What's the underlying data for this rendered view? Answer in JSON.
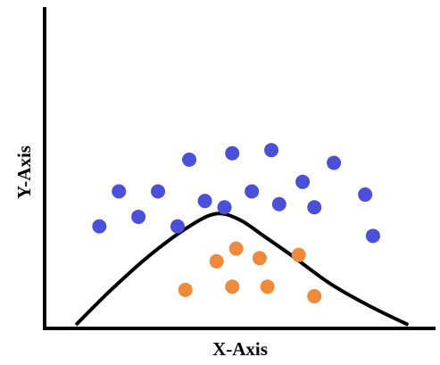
{
  "chart_data": {
    "type": "scatter",
    "xlabel": "X-Axis",
    "ylabel": "Y-Axis",
    "xlim": [
      0,
      100
    ],
    "ylim": [
      0,
      100
    ],
    "grid": false,
    "series": [
      {
        "color": "#4a50d8",
        "points": [
          [
            14,
            31
          ],
          [
            24,
            34
          ],
          [
            34,
            31
          ],
          [
            19,
            42
          ],
          [
            29,
            42
          ],
          [
            37,
            52
          ],
          [
            41,
            39
          ],
          [
            46,
            37
          ],
          [
            48,
            54
          ],
          [
            53,
            42
          ],
          [
            58,
            55
          ],
          [
            60,
            38
          ],
          [
            66,
            45
          ],
          [
            69,
            37
          ],
          [
            74,
            51
          ],
          [
            82,
            41
          ],
          [
            84,
            28
          ]
        ]
      },
      {
        "color": "#f08a3a",
        "points": [
          [
            36,
            11
          ],
          [
            44,
            20
          ],
          [
            49,
            24
          ],
          [
            48,
            12
          ],
          [
            55,
            21
          ],
          [
            57,
            12
          ],
          [
            65,
            22
          ],
          [
            69,
            9
          ]
        ]
      }
    ],
    "curve": {
      "color": "#000000",
      "x": [
        8,
        17,
        27,
        37,
        44,
        50,
        56,
        63,
        73,
        83,
        93
      ],
      "y": [
        0,
        11,
        22,
        31,
        35,
        33,
        28,
        22,
        13,
        6,
        0
      ]
    }
  }
}
